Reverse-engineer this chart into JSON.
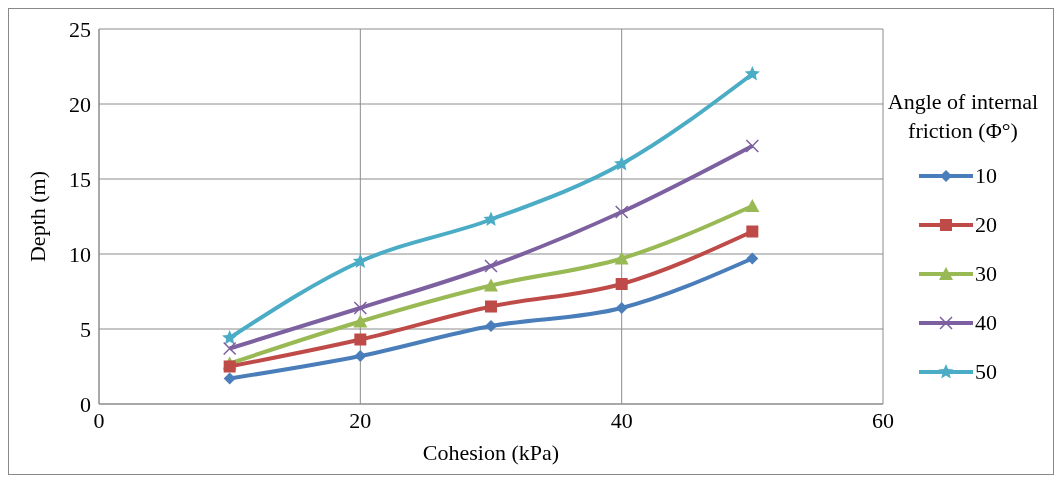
{
  "chart_data": {
    "type": "line",
    "xlabel": "Cohesion  (kPa)",
    "ylabel": "Depth (m)",
    "legend_title": "Angle  of internal  friction (Φ°)",
    "x": [
      10,
      20,
      30,
      40,
      50
    ],
    "xlim": [
      0,
      60
    ],
    "xticks": [
      0,
      20,
      40,
      60
    ],
    "ylim": [
      0,
      25
    ],
    "yticks": [
      0,
      5,
      10,
      15,
      20,
      25
    ],
    "grid": true,
    "legend": "right",
    "line_style": "solid",
    "series": [
      {
        "name": "10",
        "color": "#4a7ebb",
        "marker": "diamond",
        "values": [
          1.7,
          3.2,
          5.2,
          6.4,
          9.7
        ]
      },
      {
        "name": "20",
        "color": "#be4b48",
        "marker": "square",
        "values": [
          2.5,
          4.3,
          6.5,
          8.0,
          11.5
        ]
      },
      {
        "name": "30",
        "color": "#98b954",
        "marker": "triangle",
        "values": [
          2.7,
          5.5,
          7.9,
          9.7,
          13.2
        ]
      },
      {
        "name": "40",
        "color": "#7d60a0",
        "marker": "cross",
        "values": [
          3.7,
          6.4,
          9.2,
          12.8,
          17.2
        ]
      },
      {
        "name": "50",
        "color": "#4bacc6",
        "marker": "star",
        "values": [
          4.4,
          9.5,
          12.3,
          16.0,
          22.0
        ]
      }
    ]
  }
}
